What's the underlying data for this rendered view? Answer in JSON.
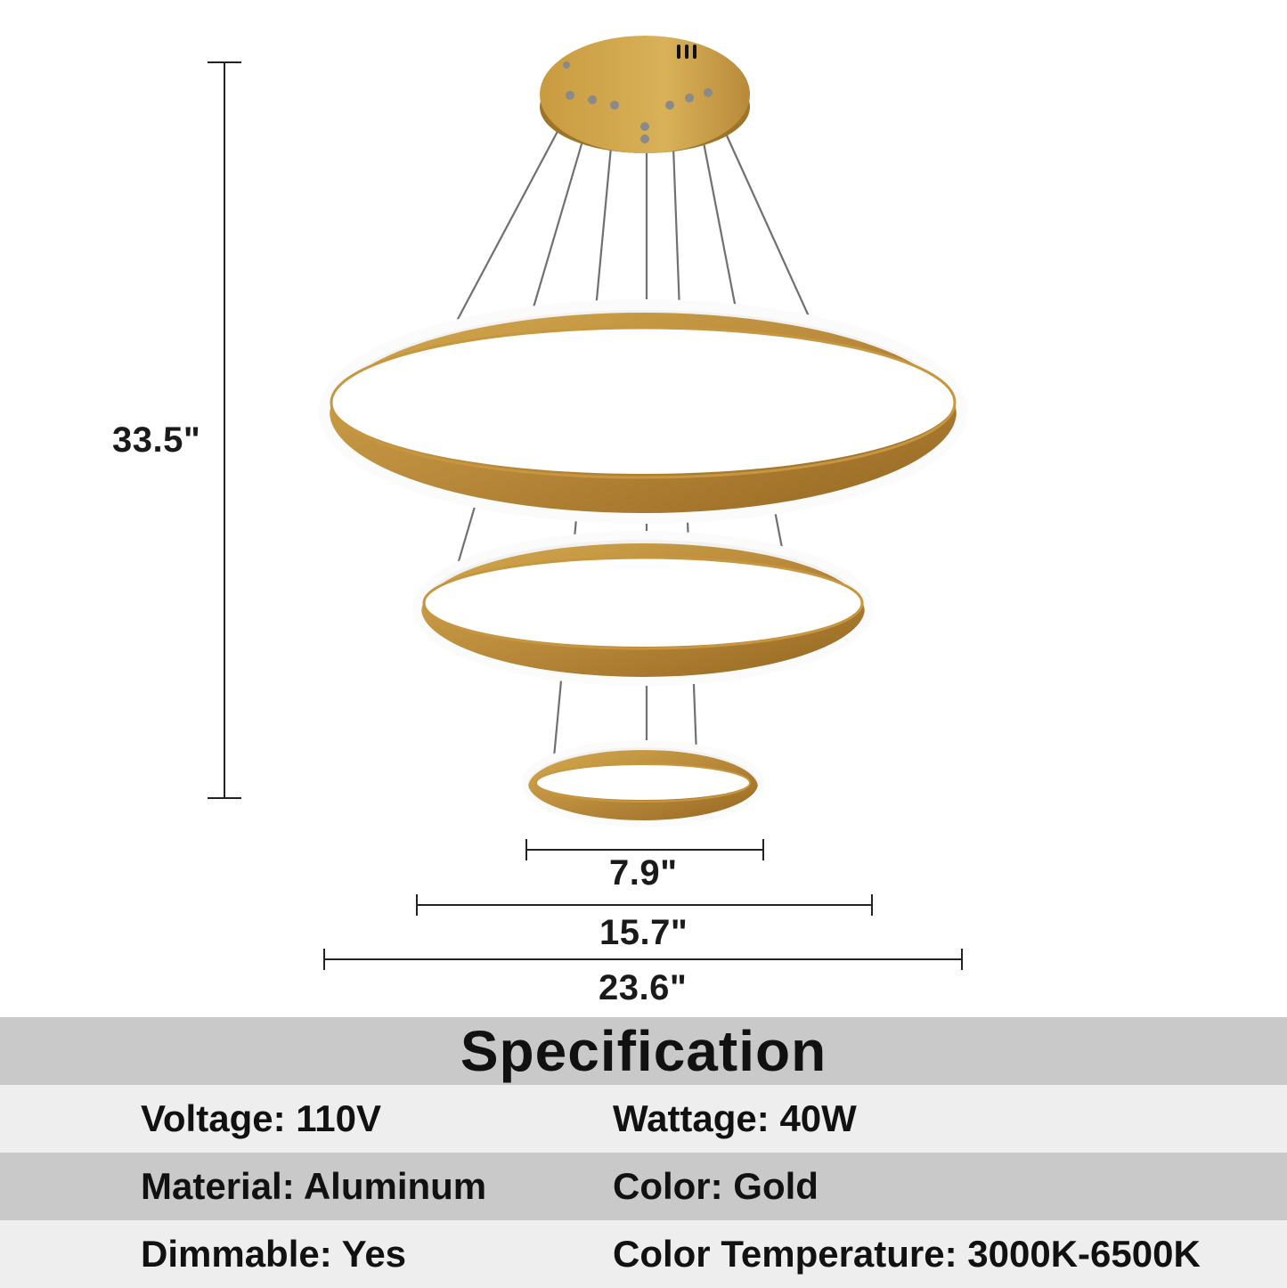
{
  "dimensions": {
    "height": "33.5\"",
    "small_ring_diameter": "7.9\"",
    "medium_ring_diameter": "15.7\"",
    "large_ring_diameter": "23.6\""
  },
  "colors": {
    "gold": "#b8893a",
    "gold_dark": "#9a6d22",
    "ring_white": "#fbfbfb",
    "wire": "#6e6e6e"
  },
  "specification": {
    "title": "Specification",
    "rows": [
      {
        "left": "Voltage: 110V",
        "right": "Wattage: 40W"
      },
      {
        "left": "Material: Aluminum",
        "right": "Color: Gold"
      },
      {
        "left": "Dimmable: Yes",
        "right": "Color Temperature: 3000K-6500K"
      }
    ]
  }
}
